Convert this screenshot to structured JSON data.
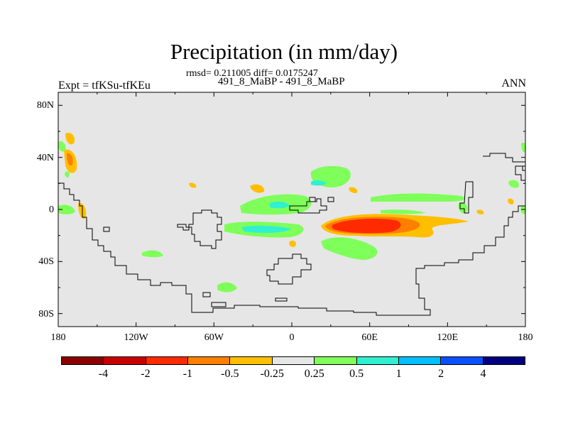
{
  "title": "Precipitation (in mm/day)",
  "stats_line": "rmsd= 0.211005 diff= 0.0175247",
  "subtitle": "491_8_MaBP - 491_8_MaBP",
  "left_label": "Expt = tfKSu-tfKEu",
  "right_label": "ANN",
  "chart_data": {
    "type": "heatmap",
    "projection": "cylindrical-equidistant",
    "lat_ticks": [
      "80N",
      "40N",
      "0",
      "40S",
      "80S"
    ],
    "lat_values": [
      80,
      40,
      0,
      -40,
      -80
    ],
    "lon_ticks": [
      "180",
      "120W",
      "60W",
      "0",
      "60E",
      "120E",
      "180"
    ],
    "lon_values": [
      -180,
      -120,
      -60,
      0,
      60,
      120,
      180
    ],
    "lat_range": [
      -90,
      90
    ],
    "lon_range": [
      -180,
      180
    ],
    "colorbar": {
      "levels": [
        "-4",
        "-2",
        "-1",
        "-0.5",
        "-0.25",
        "0.25",
        "0.5",
        "1",
        "2",
        "4"
      ],
      "colors": [
        "#8b0000",
        "#c80000",
        "#ff2a00",
        "#ff7f00",
        "#ffbf00",
        "#e6e6e6",
        "#7fff5a",
        "#2ff0d0",
        "#00bfff",
        "#0a50ff",
        "#00007f"
      ]
    },
    "background_color": "#e6e6e6"
  }
}
